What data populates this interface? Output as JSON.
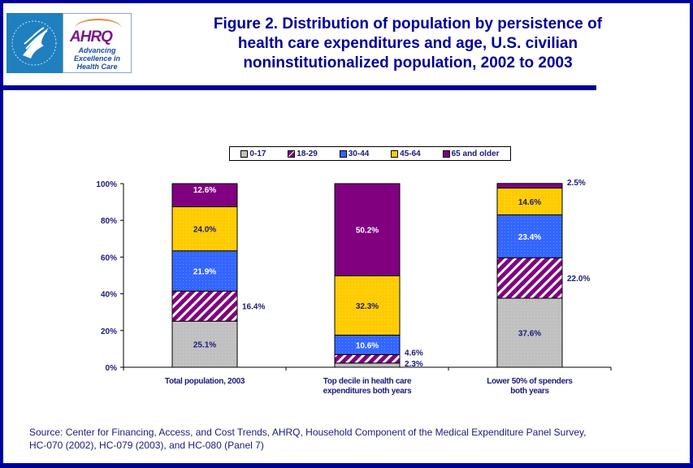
{
  "logo": {
    "hhs_label": "Department of Health & Human Services USA",
    "ahrq_word": "AHRQ",
    "ahrq_tagline_1": "Advancing",
    "ahrq_tagline_2": "Excellence in",
    "ahrq_tagline_3": "Health Care"
  },
  "title_lines": [
    "Figure 2. Distribution of population by persistence of",
    "health care expenditures and age, U.S. civilian",
    "noninstitutionalized population, 2002 to 2003"
  ],
  "source_lines": [
    "Source: Center for Financing, Access, and Cost Trends, AHRQ, Household Component of the Medical Expenditure Panel Survey,",
    "HC-070 (2002), HC-079 (2003), and HC-080 (Panel 7)"
  ],
  "colors": {
    "frame": "#000099",
    "text": "#1a1a7a"
  },
  "chart_data": {
    "type": "bar",
    "stacked": true,
    "title": "Figure 2. Distribution of population by persistence of health care expenditures and age, U.S. civilian noninstitutionalized population, 2002 to 2003",
    "xlabel": "",
    "ylabel": "",
    "ylim": [
      0,
      100
    ],
    "yticks": [
      0,
      20,
      40,
      60,
      80,
      100
    ],
    "ytick_labels": [
      "0%",
      "20%",
      "40%",
      "60%",
      "80%",
      "100%"
    ],
    "grid": false,
    "legend_position": "top-center",
    "categories": [
      [
        "Total population, 2003"
      ],
      [
        "Top decile in health care",
        "expenditures both years"
      ],
      [
        "Lower 50% of spenders",
        "both years"
      ]
    ],
    "series": [
      {
        "name": "0-17",
        "color": "#c0c0c0",
        "pattern": "dots",
        "label_color": "#1a1a7a",
        "values": [
          25.1,
          2.3,
          37.6
        ],
        "labels": [
          "25.1%",
          "2.3%",
          "37.6%"
        ],
        "label_outside": [
          false,
          true,
          false
        ]
      },
      {
        "name": "18-29",
        "color": "#800080",
        "pattern": "diagonal-stripes",
        "label_color": "#1a1a7a",
        "values": [
          16.4,
          4.6,
          22.0
        ],
        "labels": [
          "16.4%",
          "4.6%",
          "22.0%"
        ],
        "label_outside": [
          true,
          true,
          true
        ]
      },
      {
        "name": "30-44",
        "color": "#3366ff",
        "pattern": "dots",
        "label_color": "#ffffff",
        "values": [
          21.9,
          10.6,
          23.4
        ],
        "labels": [
          "21.9%",
          "10.6%",
          "23.4%"
        ],
        "label_outside": [
          false,
          false,
          false
        ]
      },
      {
        "name": "45-64",
        "color": "#ffcc00",
        "pattern": "dots",
        "label_color": "#1a1a7a",
        "values": [
          24.0,
          32.3,
          14.6
        ],
        "labels": [
          "24.0%",
          "32.3%",
          "14.6%"
        ],
        "label_outside": [
          false,
          false,
          false
        ]
      },
      {
        "name": "65 and older",
        "color": "#800080",
        "pattern": "solid",
        "label_color": "#ffffff",
        "values": [
          12.6,
          50.2,
          2.5
        ],
        "labels": [
          "12.6%",
          "50.2%",
          "2.5%"
        ],
        "label_outside": [
          false,
          false,
          true
        ]
      }
    ]
  }
}
